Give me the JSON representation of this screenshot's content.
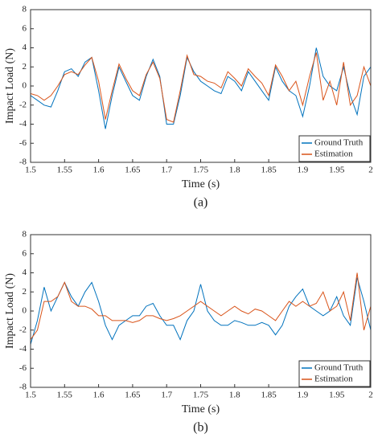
{
  "chart_data": [
    {
      "type": "line",
      "caption": "(a)",
      "xlabel": "Time (s)",
      "ylabel": "Impact Load (N)",
      "xlim": [
        1.5,
        2
      ],
      "xticks": [
        1.5,
        1.55,
        1.6,
        1.65,
        1.7,
        1.75,
        1.8,
        1.85,
        1.9,
        1.95,
        2
      ],
      "ylim": [
        -8,
        8
      ],
      "yticks": [
        -8,
        -6,
        -4,
        -2,
        0,
        2,
        4,
        6,
        8
      ],
      "legend": "lower right",
      "x": [
        1.5,
        1.51,
        1.52,
        1.53,
        1.54,
        1.55,
        1.56,
        1.57,
        1.58,
        1.59,
        1.6,
        1.61,
        1.62,
        1.63,
        1.64,
        1.65,
        1.66,
        1.67,
        1.68,
        1.69,
        1.7,
        1.71,
        1.72,
        1.73,
        1.74,
        1.75,
        1.76,
        1.77,
        1.78,
        1.79,
        1.8,
        1.81,
        1.82,
        1.83,
        1.84,
        1.85,
        1.86,
        1.87,
        1.88,
        1.89,
        1.9,
        1.91,
        1.92,
        1.93,
        1.94,
        1.95,
        1.96,
        1.97,
        1.98,
        1.99,
        2
      ],
      "series": [
        {
          "name": "Ground Truth",
          "color": "#0072bd",
          "values": [
            -1,
            -1.5,
            -2,
            -2.2,
            -0.5,
            1.5,
            1.8,
            1,
            2.5,
            3,
            -0.5,
            -4.5,
            -1,
            2,
            0.5,
            -1,
            -1.5,
            1,
            2.8,
            1,
            -4,
            -4,
            -1,
            3,
            1.5,
            0.5,
            0,
            -0.5,
            -0.8,
            1,
            0.5,
            -0.5,
            1.5,
            0.5,
            -0.5,
            -1.5,
            2,
            0.5,
            -0.5,
            -1,
            -3.2,
            0,
            4,
            1,
            0,
            -0.5,
            2,
            -1,
            -3,
            1,
            2
          ]
        },
        {
          "name": "Estimation",
          "color": "#d95319",
          "values": [
            -0.8,
            -1,
            -1.5,
            -1,
            0,
            1.2,
            1.5,
            1.2,
            2.2,
            3,
            0.5,
            -3.5,
            -0.5,
            2.3,
            0.8,
            -0.5,
            -1,
            1.2,
            2.5,
            0.8,
            -3.5,
            -3.8,
            -0.5,
            3.2,
            1.2,
            1,
            0.5,
            0.3,
            -0.2,
            1.5,
            0.8,
            0,
            1.8,
            1,
            0.3,
            -1,
            2.2,
            1,
            -0.5,
            0.5,
            -2,
            1,
            3.5,
            -1.5,
            0.5,
            -2,
            2.5,
            -2,
            -1,
            2,
            0
          ]
        }
      ]
    },
    {
      "type": "line",
      "caption": "(b)",
      "xlabel": "Time (s)",
      "ylabel": "Impact Load (N)",
      "xlim": [
        1.5,
        2
      ],
      "xticks": [
        1.5,
        1.55,
        1.6,
        1.65,
        1.7,
        1.75,
        1.8,
        1.85,
        1.9,
        1.95,
        2
      ],
      "ylim": [
        -8,
        8
      ],
      "yticks": [
        -8,
        -6,
        -4,
        -2,
        0,
        2,
        4,
        6,
        8
      ],
      "legend": "lower right",
      "x": [
        1.5,
        1.51,
        1.52,
        1.53,
        1.54,
        1.55,
        1.56,
        1.57,
        1.58,
        1.59,
        1.6,
        1.61,
        1.62,
        1.63,
        1.64,
        1.65,
        1.66,
        1.67,
        1.68,
        1.69,
        1.7,
        1.71,
        1.72,
        1.73,
        1.74,
        1.75,
        1.76,
        1.77,
        1.78,
        1.79,
        1.8,
        1.81,
        1.82,
        1.83,
        1.84,
        1.85,
        1.86,
        1.87,
        1.88,
        1.89,
        1.9,
        1.91,
        1.92,
        1.93,
        1.94,
        1.95,
        1.96,
        1.97,
        1.98,
        1.99,
        2
      ],
      "series": [
        {
          "name": "Ground Truth",
          "color": "#0072bd",
          "values": [
            -3.5,
            -1,
            2.5,
            0,
            1.5,
            3,
            1.5,
            0.5,
            2,
            3,
            1,
            -1.5,
            -3,
            -1.5,
            -1,
            -0.5,
            -0.5,
            0.5,
            0.8,
            -0.5,
            -1.5,
            -1.5,
            -3,
            -1,
            0,
            2.8,
            0,
            -1,
            -1.5,
            -1.5,
            -1,
            -1.2,
            -1.5,
            -1.5,
            -1.2,
            -1.5,
            -2.5,
            -1.5,
            0.5,
            1.5,
            2.3,
            0.5,
            0,
            -0.5,
            0,
            1.5,
            -0.5,
            -1.5,
            3.5,
            1,
            -2
          ]
        },
        {
          "name": "Estimation",
          "color": "#d95319",
          "values": [
            -3,
            -2,
            1,
            1,
            1.5,
            3,
            1,
            0.5,
            0.5,
            0.2,
            -0.5,
            -0.5,
            -1,
            -1,
            -1,
            -1.2,
            -1,
            -0.5,
            -0.5,
            -0.8,
            -1,
            -0.8,
            -0.5,
            0,
            0.5,
            1,
            0.5,
            0,
            -0.5,
            0,
            0.5,
            0,
            -0.3,
            0.2,
            0,
            -0.5,
            -1,
            0,
            1,
            0.5,
            1,
            0.5,
            0.8,
            2,
            0,
            0.5,
            2,
            -1,
            4,
            -2,
            0.5
          ]
        }
      ]
    }
  ]
}
